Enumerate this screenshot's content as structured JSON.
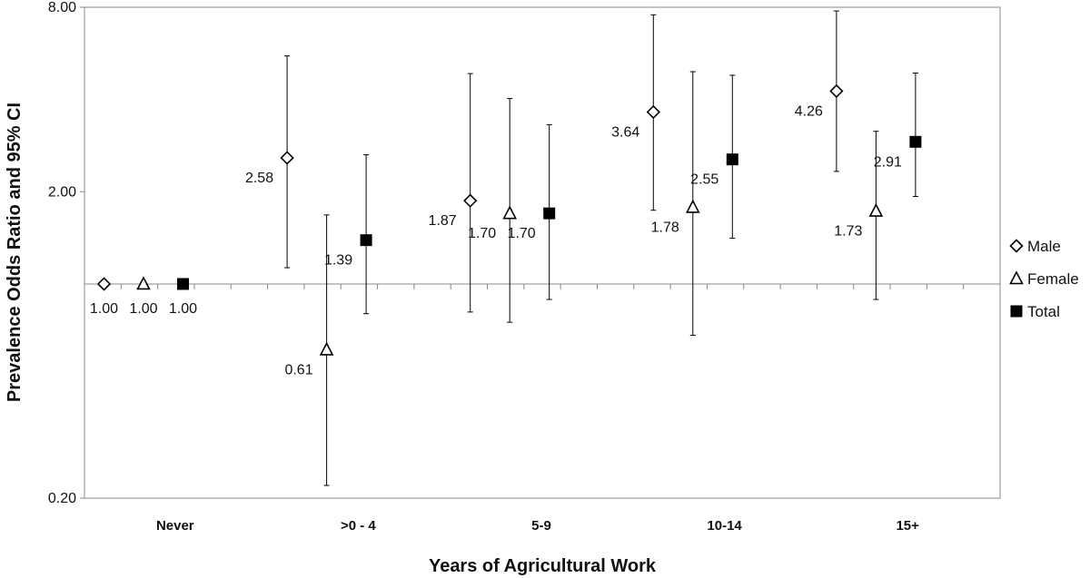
{
  "chart_data": {
    "type": "scatter",
    "subtype": "point-estimate-with-error-bars",
    "title": "",
    "xlabel": "Years of Agricultural Work",
    "ylabel": "Prevalence Odds Ratio and 95% CI",
    "yscale": "log",
    "ylim": [
      0.2,
      8.0
    ],
    "yticks": [
      "0.20",
      "2.00",
      "8.00"
    ],
    "reference_line": 1.0,
    "legend_position": "right",
    "categories": [
      "Never",
      ">0 - 4",
      "5-9",
      "10-14",
      "15+"
    ],
    "series": [
      {
        "name": "Male",
        "marker": "diamond-open",
        "values": [
          1.0,
          2.58,
          1.87,
          3.64,
          4.26
        ],
        "labels": [
          "1.00",
          "2.58",
          "1.87",
          "3.64",
          "4.26"
        ],
        "ci_low": [
          null,
          1.13,
          0.81,
          1.74,
          2.33
        ],
        "ci_high": [
          null,
          5.55,
          4.86,
          7.56,
          7.78
        ]
      },
      {
        "name": "Female",
        "marker": "triangle-open",
        "values": [
          1.0,
          0.61,
          1.7,
          1.78,
          1.73
        ],
        "labels": [
          "1.00",
          "0.61",
          "1.70",
          "1.78",
          "1.73"
        ],
        "ci_low": [
          null,
          0.22,
          0.75,
          0.68,
          0.89
        ],
        "ci_high": [
          null,
          1.68,
          4.03,
          4.93,
          3.15
        ]
      },
      {
        "name": "Total",
        "marker": "square-filled",
        "values": [
          1.0,
          1.39,
          1.7,
          2.55,
          2.91
        ],
        "labels": [
          "1.00",
          "1.39",
          "1.70",
          "2.55",
          "2.91"
        ],
        "ci_low": [
          null,
          0.8,
          0.89,
          1.41,
          1.93
        ],
        "ci_high": [
          null,
          2.64,
          3.31,
          4.8,
          4.88
        ]
      }
    ]
  }
}
